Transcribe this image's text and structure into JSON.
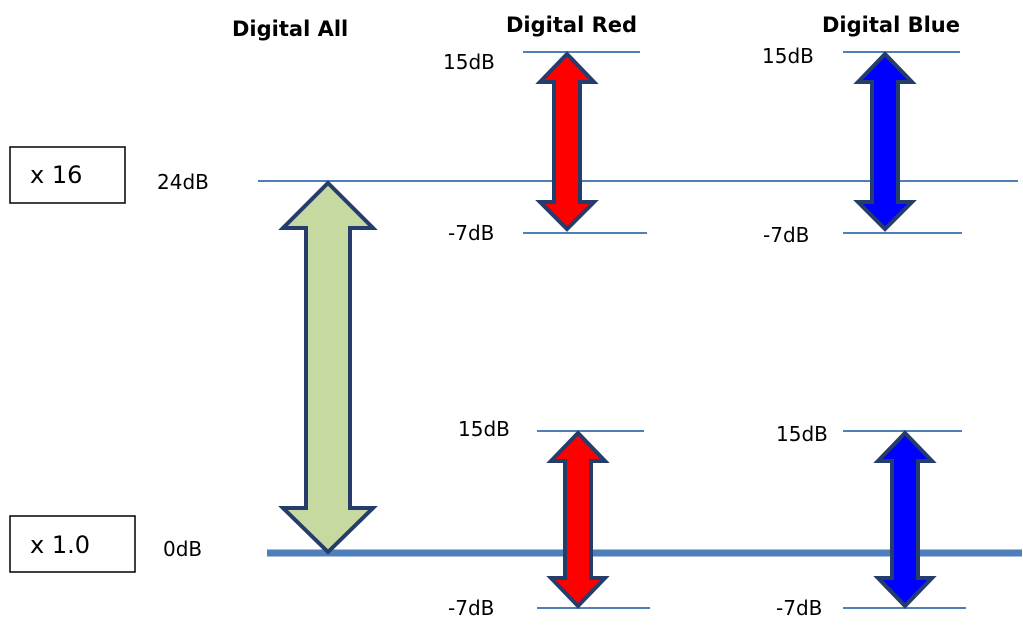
{
  "headers": {
    "all": "Digital All",
    "red": "Digital Red",
    "blue": "Digital Blue"
  },
  "gain_boxes": {
    "x16": "x 16",
    "x1": "x 1.0"
  },
  "levels": {
    "top_all": "24dB",
    "base_all": "0dB",
    "red_top_max": "15dB",
    "red_top_min": "-7dB",
    "blue_top_max": "15dB",
    "blue_top_min": "-7dB",
    "red_bottom_max": "15dB",
    "red_bottom_min": "-7dB",
    "blue_bottom_max": "15dB",
    "blue_bottom_min": "-7dB"
  },
  "colors": {
    "line": "#4e7fba",
    "arrow_outline": "#253d6b",
    "all_fill": "#c5d9a0",
    "red_fill": "#ff0000",
    "blue_fill": "#0000ff"
  }
}
